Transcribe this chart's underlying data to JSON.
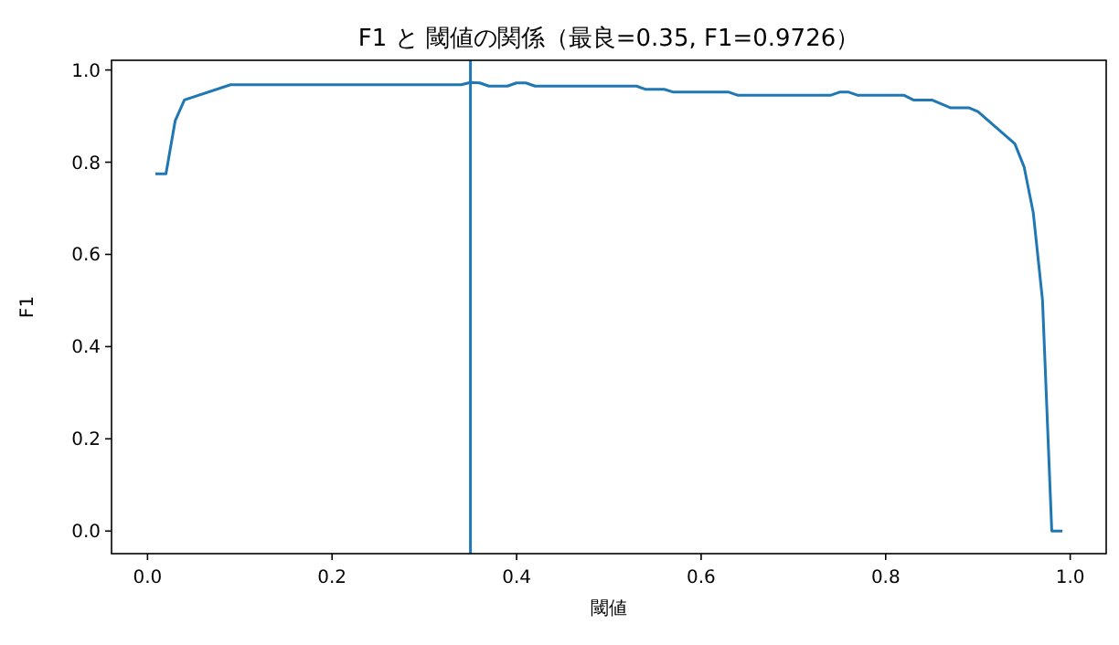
{
  "chart_data": {
    "type": "line",
    "title": "F1 と 閾値の関係（最良=0.35, F1=0.9726）",
    "xlabel": "閾値",
    "ylabel": "F1",
    "x": [
      0.01,
      0.02,
      0.03,
      0.04,
      0.09,
      0.34,
      0.35,
      0.36,
      0.37,
      0.39,
      0.4,
      0.41,
      0.42,
      0.53,
      0.54,
      0.56,
      0.57,
      0.63,
      0.64,
      0.74,
      0.75,
      0.76,
      0.77,
      0.82,
      0.83,
      0.85,
      0.87,
      0.89,
      0.9,
      0.94,
      0.95,
      0.96,
      0.97,
      0.98,
      0.99
    ],
    "series": [
      {
        "color": "#1f77b4",
        "values": [
          0.775,
          0.775,
          0.89,
          0.935,
          0.968,
          0.968,
          0.973,
          0.972,
          0.965,
          0.965,
          0.972,
          0.972,
          0.965,
          0.965,
          0.958,
          0.958,
          0.952,
          0.952,
          0.945,
          0.945,
          0.952,
          0.952,
          0.945,
          0.945,
          0.935,
          0.935,
          0.918,
          0.918,
          0.91,
          0.84,
          0.79,
          0.69,
          0.5,
          0.0,
          0.0
        ]
      }
    ],
    "xlim": [
      -0.039,
      1.039
    ],
    "ylim": [
      -0.049,
      1.021
    ],
    "xticks": [
      {
        "value": 0,
        "label": "0.0"
      },
      0.2,
      0.4,
      0.6,
      0.8,
      {
        "value": 1,
        "label": "1.0"
      }
    ],
    "yticks": [
      {
        "value": 0,
        "label": "0.0"
      },
      0.2,
      0.4,
      0.6,
      0.8,
      {
        "value": 1,
        "label": "1.0"
      }
    ],
    "ref_lines": [
      {
        "axis": "x",
        "value": 0.35,
        "color": "#1f77b4"
      }
    ],
    "grid": false
  }
}
